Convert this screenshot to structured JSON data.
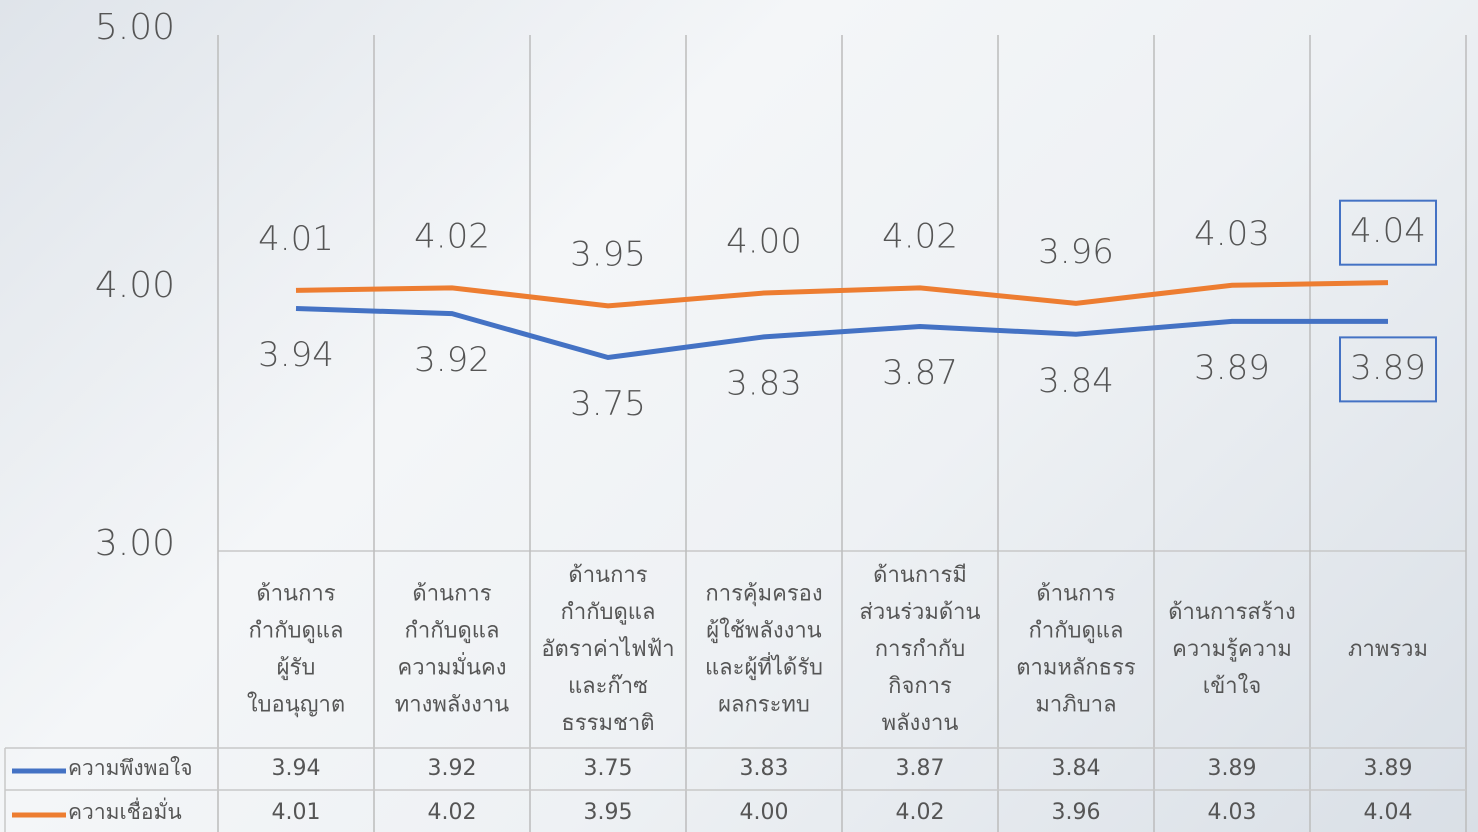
{
  "chart_data": {
    "type": "line",
    "categories": [
      [
        "ด้านการ",
        "กำกับดูแล",
        "ผู้รับ",
        "ใบอนุญาต"
      ],
      [
        "ด้านการ",
        "กำกับดูแล",
        "ความมั่นคง",
        "ทางพลังงาน"
      ],
      [
        "ด้านการ",
        "กำกับดูแล",
        "อัตราค่าไฟฟ้า",
        "และก๊าซ",
        "ธรรมชาติ"
      ],
      [
        "การคุ้มครอง",
        "ผู้ใช้พลังงาน",
        "และผู้ที่ได้รับ",
        "ผลกระทบ"
      ],
      [
        "ด้านการมี",
        "ส่วนร่วมด้าน",
        "การกำกับ",
        "กิจการ",
        "พลังงาน"
      ],
      [
        "ด้านการ",
        "กำกับดูแล",
        "ตามหลักธรร",
        "มาภิบาล"
      ],
      [
        "ด้านการสร้าง",
        "ความรู้ความ",
        "เข้าใจ"
      ],
      [
        "ภาพรวม"
      ]
    ],
    "series": [
      {
        "name": "ความพึงพอใจ",
        "color": "#4472c4",
        "values": [
          3.94,
          3.92,
          3.75,
          3.83,
          3.87,
          3.84,
          3.89,
          3.89
        ],
        "value_labels": [
          "3.94",
          "3.92",
          "3.75",
          "3.83",
          "3.87",
          "3.84",
          "3.89",
          "3.89"
        ]
      },
      {
        "name": "ความเชื่อมั่น",
        "color": "#ed7d31",
        "values": [
          4.01,
          4.02,
          3.95,
          4.0,
          4.02,
          3.96,
          4.03,
          4.04
        ],
        "value_labels": [
          "4.01",
          "4.02",
          "3.95",
          "4.00",
          "4.02",
          "3.96",
          "4.03",
          "4.04"
        ]
      }
    ],
    "ylim": [
      3,
      5
    ],
    "yticks": [
      {
        "value": 3,
        "label": "3.00"
      },
      {
        "value": 4,
        "label": "4.00"
      },
      {
        "value": 5,
        "label": "5.00"
      }
    ],
    "grid": true
  }
}
